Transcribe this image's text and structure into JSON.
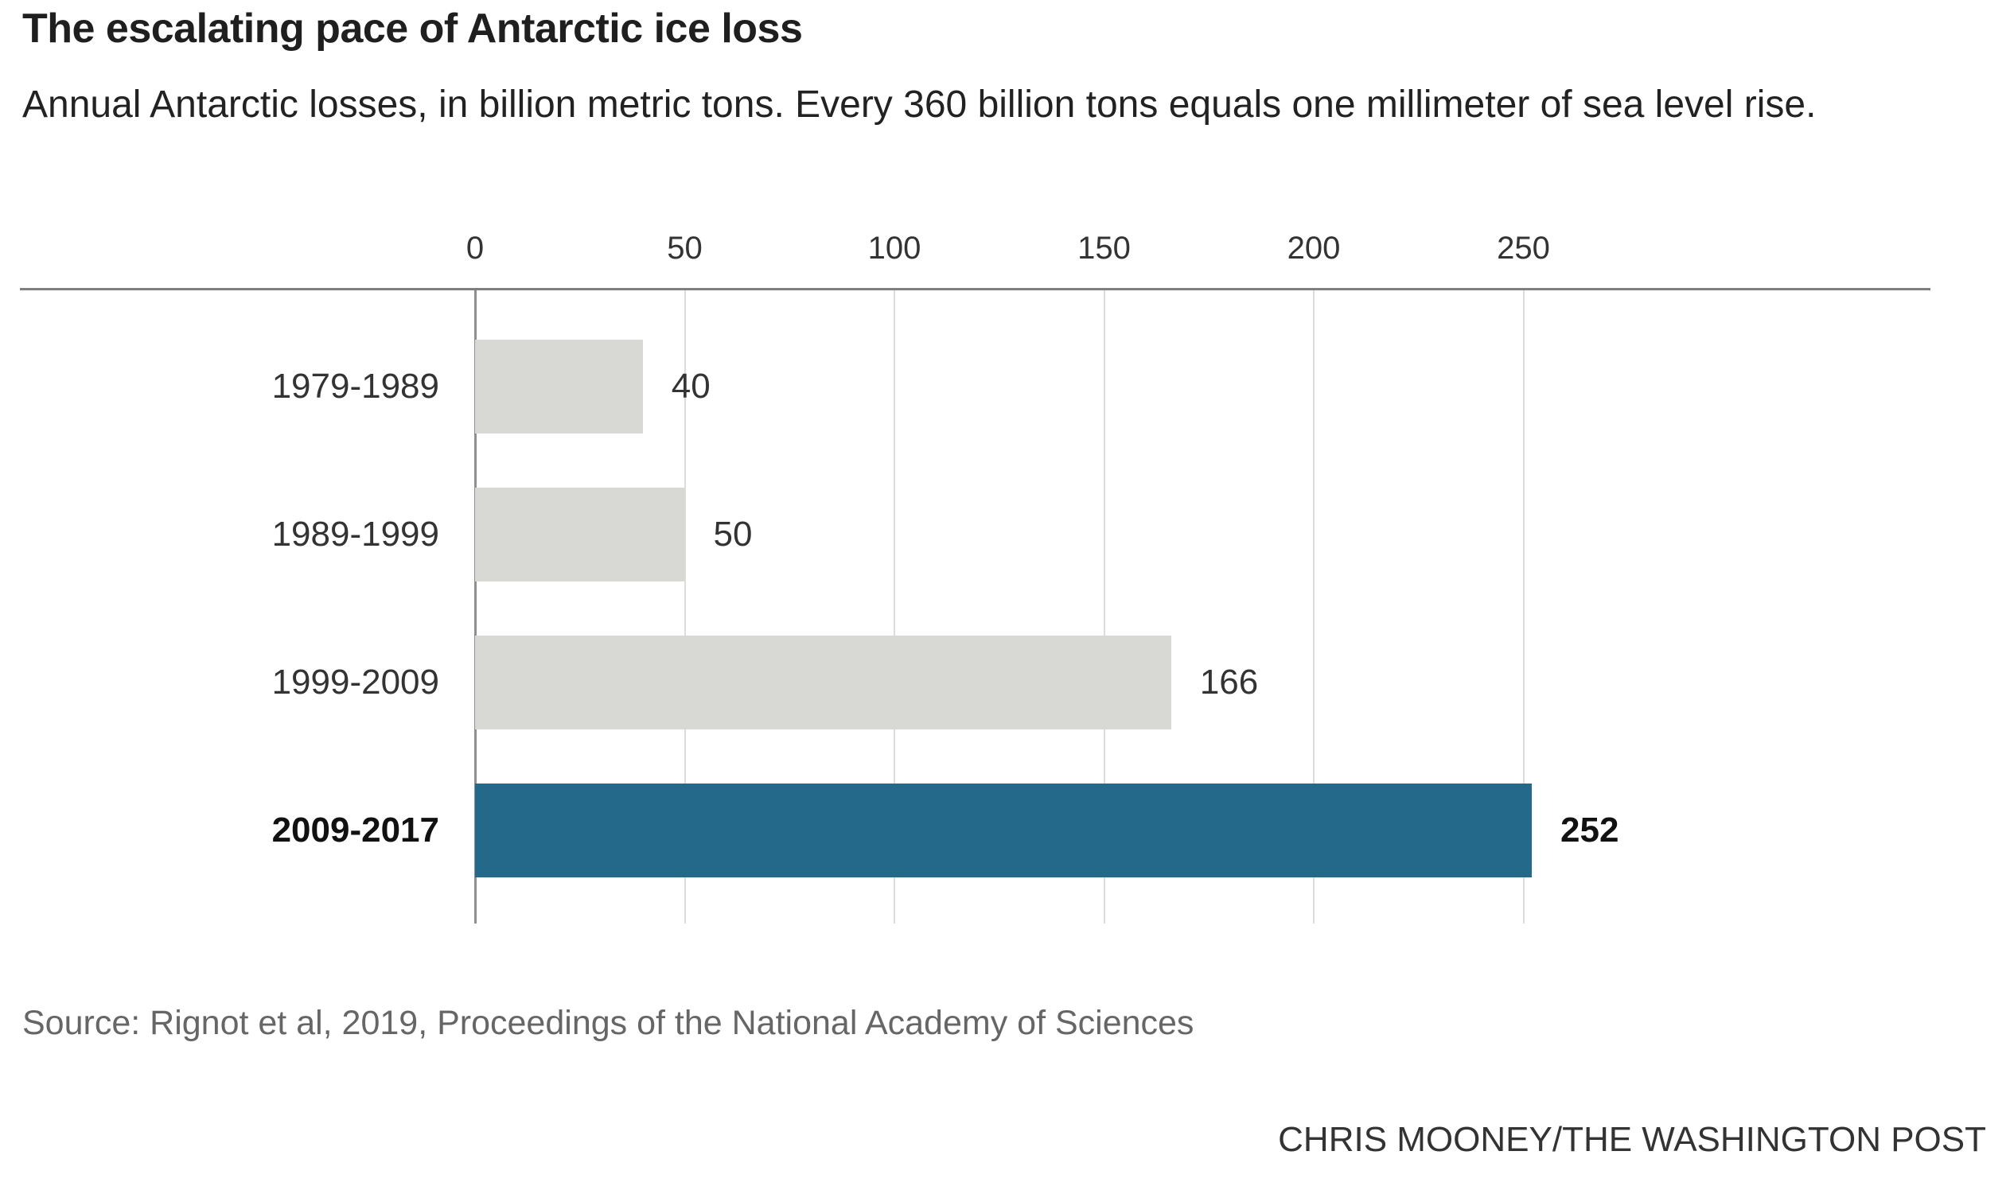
{
  "chart_data": {
    "type": "bar",
    "orientation": "horizontal",
    "title": "The escalating pace of Antarctic ice loss",
    "subtitle": "Annual Antarctic losses, in billion metric tons. Every 360 billion tons equals one millimeter of sea level rise.",
    "categories": [
      "1979-1989",
      "1989-1999",
      "1999-2009",
      "2009-2017"
    ],
    "values": [
      40,
      50,
      166,
      252
    ],
    "value_labels": [
      "40",
      "50",
      "166",
      "252"
    ],
    "highlight_index": 3,
    "ticks": [
      0,
      50,
      100,
      150,
      200,
      250
    ],
    "xlim": [
      0,
      300
    ],
    "units": "billion metric tons per year",
    "grid": true,
    "legend": false,
    "bar_color": "#d8d8d5",
    "highlight_color": "#24698a",
    "source": "Source: Rignot et al, 2019, Proceedings of the National Academy of Sciences",
    "credit": "CHRIS MOONEY/THE WASHINGTON POST"
  }
}
